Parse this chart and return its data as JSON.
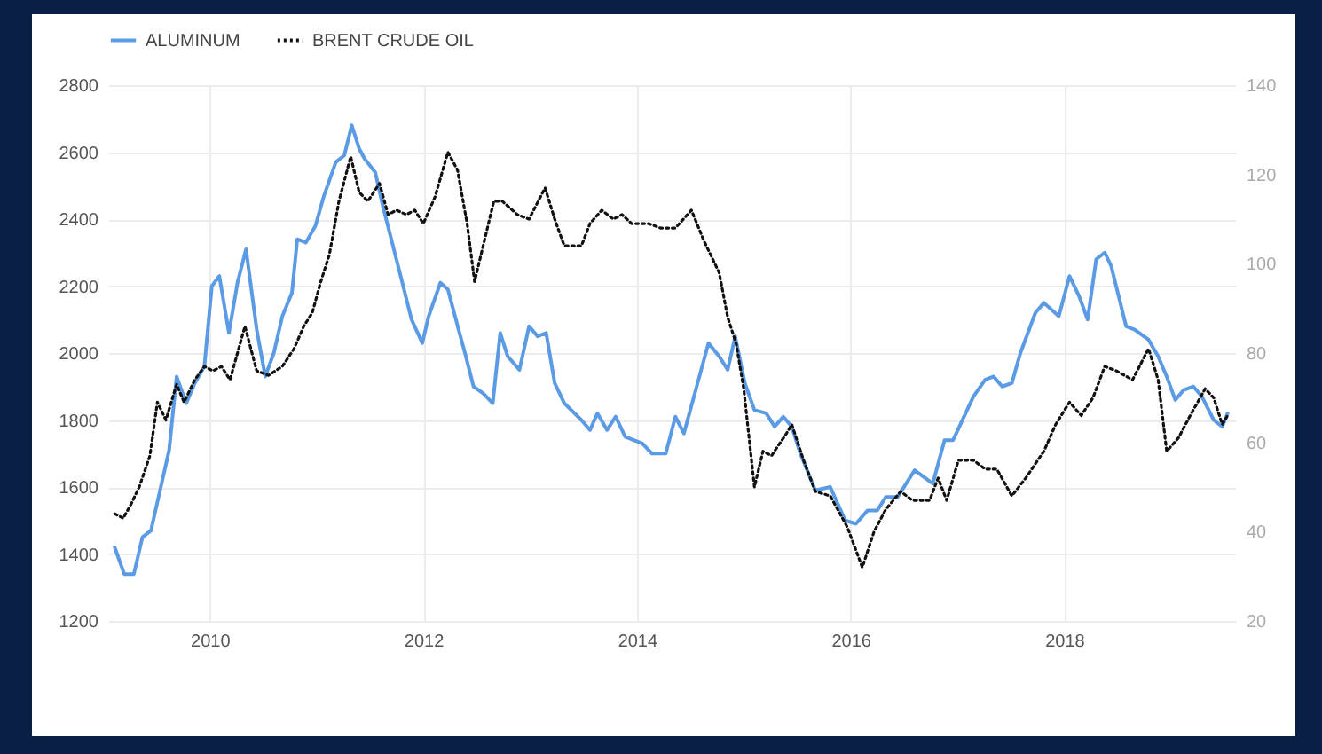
{
  "chart_data": {
    "type": "line",
    "legend": "top left",
    "grid": true,
    "xlim": [
      2009.05,
      2019.6
    ],
    "xticks": [
      2010,
      2012,
      2014,
      2016,
      2018
    ],
    "ylim": [
      1200,
      2800
    ],
    "yticks": [
      1200,
      1400,
      1600,
      1800,
      2000,
      2200,
      2400,
      2600,
      2800
    ],
    "y2lim": [
      20,
      140
    ],
    "y2ticks": [
      20,
      40,
      60,
      80,
      100,
      120,
      140
    ],
    "series": [
      {
        "name": "ALUMINUM",
        "color": "#5b9be6",
        "line_style": "solid",
        "x": [
          2009.11,
          2009.2,
          2009.29,
          2009.37,
          2009.45,
          2009.62,
          2009.69,
          2009.78,
          2009.86,
          2009.95,
          2010.02,
          2010.09,
          2010.18,
          2010.26,
          2010.34,
          2010.44,
          2010.52,
          2010.6,
          2010.68,
          2010.77,
          2010.82,
          2010.9,
          2010.99,
          2011.07,
          2011.18,
          2011.26,
          2011.33,
          2011.4,
          2011.45,
          2011.55,
          2011.62,
          2011.78,
          2011.89,
          2011.99,
          2012.05,
          2012.16,
          2012.23,
          2012.33,
          2012.39,
          2012.47,
          2012.56,
          2012.65,
          2012.72,
          2012.79,
          2012.9,
          2012.99,
          2013.07,
          2013.15,
          2013.23,
          2013.32,
          2013.48,
          2013.56,
          2013.63,
          2013.72,
          2013.8,
          2013.89,
          2014.05,
          2014.14,
          2014.19,
          2014.27,
          2014.36,
          2014.44,
          2014.67,
          2014.77,
          2014.85,
          2014.92,
          2015.01,
          2015.1,
          2015.21,
          2015.29,
          2015.37,
          2015.45,
          2015.53,
          2015.67,
          2015.81,
          2015.95,
          2016.05,
          2016.16,
          2016.25,
          2016.33,
          2016.44,
          2016.6,
          2016.77,
          2016.88,
          2016.96,
          2017.15,
          2017.26,
          2017.34,
          2017.42,
          2017.51,
          2017.59,
          2017.73,
          2017.81,
          2017.95,
          2018.05,
          2018.14,
          2018.22,
          2018.3,
          2018.38,
          2018.44,
          2018.58,
          2018.66,
          2018.79,
          2018.88,
          2018.96,
          2019.04,
          2019.12,
          2019.21,
          2019.29,
          2019.4,
          2019.48,
          2019.53
        ],
        "values": [
          1420,
          1340,
          1340,
          1450,
          1470,
          1710,
          1930,
          1850,
          1910,
          1960,
          2200,
          2230,
          2060,
          2210,
          2310,
          2070,
          1930,
          2000,
          2110,
          2180,
          2340,
          2330,
          2380,
          2470,
          2570,
          2590,
          2680,
          2610,
          2580,
          2540,
          2440,
          2240,
          2100,
          2030,
          2110,
          2210,
          2190,
          2070,
          2000,
          1900,
          1880,
          1850,
          2060,
          1990,
          1950,
          2080,
          2050,
          2060,
          1910,
          1850,
          1800,
          1770,
          1820,
          1770,
          1810,
          1750,
          1730,
          1700,
          1700,
          1700,
          1810,
          1760,
          2030,
          1990,
          1950,
          2050,
          1910,
          1830,
          1820,
          1780,
          1810,
          1780,
          1700,
          1590,
          1600,
          1500,
          1490,
          1530,
          1530,
          1570,
          1570,
          1650,
          1610,
          1740,
          1740,
          1870,
          1920,
          1930,
          1900,
          1910,
          2000,
          2120,
          2150,
          2110,
          2230,
          2170,
          2100,
          2280,
          2300,
          2260,
          2080,
          2070,
          2040,
          1990,
          1930,
          1860,
          1890,
          1900,
          1870,
          1800,
          1780,
          1820
        ]
      },
      {
        "name": "BRENT CRUDE OIL",
        "color": "#111111",
        "line_style": "dotted",
        "axis": "y2",
        "x": [
          2009.11,
          2009.19,
          2009.26,
          2009.34,
          2009.44,
          2009.51,
          2009.59,
          2009.69,
          2009.76,
          2009.86,
          2009.95,
          2010.03,
          2010.11,
          2010.19,
          2010.33,
          2010.44,
          2010.55,
          2010.68,
          2010.79,
          2010.88,
          2010.96,
          2011.04,
          2011.12,
          2011.21,
          2011.32,
          2011.4,
          2011.48,
          2011.59,
          2011.67,
          2011.75,
          2011.84,
          2011.92,
          2012.0,
          2012.11,
          2012.23,
          2012.32,
          2012.41,
          2012.48,
          2012.56,
          2012.66,
          2012.74,
          2012.88,
          2012.99,
          2013.14,
          2013.23,
          2013.32,
          2013.48,
          2013.56,
          2013.67,
          2013.78,
          2013.86,
          2013.95,
          2014.11,
          2014.22,
          2014.36,
          2014.51,
          2014.63,
          2014.77,
          2014.85,
          2014.93,
          2015.0,
          2015.1,
          2015.18,
          2015.26,
          2015.4,
          2015.45,
          2015.56,
          2015.67,
          2015.81,
          2015.97,
          2016.11,
          2016.22,
          2016.33,
          2016.47,
          2016.58,
          2016.74,
          2016.82,
          2016.9,
          2017.01,
          2017.15,
          2017.26,
          2017.37,
          2017.51,
          2017.64,
          2017.81,
          2017.92,
          2018.05,
          2018.16,
          2018.27,
          2018.38,
          2018.49,
          2018.64,
          2018.79,
          2018.88,
          2018.96,
          2019.07,
          2019.18,
          2019.32,
          2019.4,
          2019.48,
          2019.53
        ],
        "values": [
          44,
          43,
          46,
          50,
          57,
          69,
          65,
          73,
          69,
          74,
          77,
          76,
          77,
          74,
          86,
          76,
          75,
          77,
          81,
          86,
          89,
          96,
          102,
          114,
          124,
          116,
          114,
          118,
          111,
          112,
          111,
          112,
          109,
          115,
          125,
          121,
          109,
          96,
          104,
          114,
          114,
          111,
          110,
          117,
          110,
          104,
          104,
          109,
          112,
          110,
          111,
          109,
          109,
          108,
          108,
          112,
          105,
          98,
          88,
          82,
          72,
          50,
          58,
          57,
          62,
          64,
          56,
          49,
          48,
          41,
          32,
          40,
          45,
          49,
          47,
          47,
          52,
          47,
          56,
          56,
          54,
          54,
          48,
          52,
          58,
          64,
          69,
          66,
          70,
          77,
          76,
          74,
          81,
          74,
          58,
          61,
          66,
          72,
          70,
          64,
          66
        ]
      }
    ]
  }
}
